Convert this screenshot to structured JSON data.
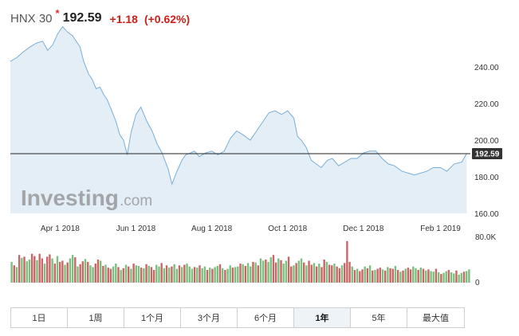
{
  "header": {
    "index_name": "HNX 30",
    "realtime_mark": "*",
    "last_price": "192.59",
    "change": "+1.18",
    "change_pct": "(+0.62%)",
    "change_color": "#c8221b"
  },
  "watermark": {
    "brand": "Investing",
    "suffix": ".com"
  },
  "colors": {
    "line": "#7aaed6",
    "area": "#e4eef7",
    "vol_up": "#7bbf7f",
    "vol_down": "#c96565",
    "last_line": "#222222",
    "label_bg": "#333333"
  },
  "chart_data": {
    "type": "area",
    "y_ticks": [
      "240.00",
      "220.00",
      "200.00",
      "180.00",
      "160.00"
    ],
    "ylim": [
      160,
      260
    ],
    "x_ticks": [
      {
        "label": "Apr 1 2018",
        "x": "2018-04-01"
      },
      {
        "label": "Jun 1 2018",
        "x": "2018-06-01"
      },
      {
        "label": "Aug 1 2018",
        "x": "2018-08-01"
      },
      {
        "label": "Oct 1 2018",
        "x": "2018-10-01"
      },
      {
        "label": "Dec 1 2018",
        "x": "2018-12-01"
      },
      {
        "label": "Feb 1 2019",
        "x": "2019-02-01"
      }
    ],
    "x_range": [
      "2018-02-20",
      "2019-02-25"
    ],
    "series": [
      {
        "x": [
          "2018-02-20",
          "2018-02-25",
          "2018-03-02",
          "2018-03-08",
          "2018-03-13",
          "2018-03-18",
          "2018-03-22",
          "2018-03-26",
          "2018-03-30",
          "2018-04-03",
          "2018-04-07",
          "2018-04-11",
          "2018-04-15",
          "2018-04-17",
          "2018-04-20",
          "2018-04-24",
          "2018-04-27",
          "2018-04-30",
          "2018-05-03",
          "2018-05-06",
          "2018-05-09",
          "2018-05-12",
          "2018-05-16",
          "2018-05-19",
          "2018-05-22",
          "2018-05-25",
          "2018-05-28",
          "2018-06-01",
          "2018-06-05",
          "2018-06-10",
          "2018-06-14",
          "2018-06-18",
          "2018-06-22",
          "2018-06-27",
          "2018-06-30",
          "2018-07-04",
          "2018-07-08",
          "2018-07-11",
          "2018-07-15",
          "2018-07-18",
          "2018-07-22",
          "2018-07-27",
          "2018-08-01",
          "2018-08-06",
          "2018-08-11",
          "2018-08-16",
          "2018-08-21",
          "2018-08-26",
          "2018-09-01",
          "2018-09-06",
          "2018-09-11",
          "2018-09-16",
          "2018-09-21",
          "2018-09-26",
          "2018-10-01",
          "2018-10-06",
          "2018-10-09",
          "2018-10-12",
          "2018-10-16",
          "2018-10-20",
          "2018-10-24",
          "2018-10-28",
          "2018-11-02",
          "2018-11-06",
          "2018-11-11",
          "2018-11-16",
          "2018-11-21",
          "2018-11-26",
          "2018-12-01",
          "2018-12-06",
          "2018-12-11",
          "2018-12-16",
          "2018-12-21",
          "2018-12-26",
          "2019-01-01",
          "2019-01-06",
          "2019-01-11",
          "2019-01-16",
          "2019-01-21",
          "2019-01-26",
          "2019-02-01",
          "2019-02-06",
          "2019-02-12",
          "2019-02-18",
          "2019-02-22"
        ],
        "y": [
          243,
          245,
          248,
          251,
          253,
          254,
          249,
          252,
          258,
          262,
          259,
          257,
          253,
          251,
          243,
          236,
          233,
          228,
          229,
          225,
          222,
          217,
          210,
          203,
          200,
          192,
          204,
          214,
          218,
          210,
          205,
          198,
          193,
          184,
          176,
          183,
          189,
          192,
          193,
          194,
          191,
          193,
          194,
          192,
          194,
          201,
          205,
          203,
          200,
          205,
          210,
          215,
          216,
          214,
          216,
          212,
          202,
          200,
          196,
          189,
          187,
          185,
          189,
          190,
          186,
          188,
          190,
          190,
          193,
          194,
          194,
          190,
          187,
          186,
          183,
          182,
          181,
          182,
          183,
          185,
          185,
          183,
          187,
          188,
          192.59
        ]
      }
    ],
    "last_value": "192.59",
    "volume": {
      "y_ticks": [
        "80.0K",
        "0"
      ],
      "ylim": [
        0,
        80000
      ],
      "values": [
        36000,
        30000,
        27000,
        48000,
        43000,
        45000,
        37000,
        40000,
        50000,
        46000,
        39000,
        50000,
        42000,
        33000,
        45000,
        49000,
        42000,
        33000,
        46000,
        36000,
        38000,
        31000,
        35000,
        42000,
        48000,
        44000,
        28000,
        32000,
        37000,
        41000,
        36000,
        30000,
        27000,
        33000,
        40000,
        38000,
        29000,
        31000,
        26000,
        24000,
        28000,
        33000,
        27000,
        22000,
        25000,
        31000,
        28000,
        24000,
        33000,
        30000,
        29000,
        26000,
        25000,
        32000,
        29000,
        27000,
        22000,
        31000,
        28000,
        34000,
        25000,
        30000,
        26000,
        28000,
        32000,
        24000,
        30000,
        27000,
        31000,
        33000,
        28000,
        24000,
        27000,
        26000,
        30000,
        25000,
        28000,
        22000,
        26000,
        24000,
        27000,
        29000,
        32000,
        25000,
        22000,
        24000,
        30000,
        26000,
        27000,
        28000,
        33000,
        32000,
        29000,
        34000,
        28000,
        36000,
        35000,
        30000,
        42000,
        38000,
        40000,
        36000,
        44000,
        48000,
        35000,
        42000,
        39000,
        33000,
        38000,
        45000,
        28000,
        30000,
        34000,
        38000,
        42000,
        35000,
        30000,
        38000,
        31000,
        34000,
        28000,
        33000,
        27000,
        40000,
        36000,
        31000,
        30000,
        33000,
        28000,
        25000,
        30000,
        34000,
        72000,
        36000,
        28000,
        22000,
        24000,
        20000,
        23000,
        28000,
        25000,
        30000,
        21000,
        22000,
        24000,
        26000,
        23000,
        21000,
        27000,
        25000,
        24000,
        29000,
        22000,
        19000,
        21000,
        24000,
        26000,
        23000,
        28000,
        25000,
        22000,
        26000,
        24000,
        21000,
        23000,
        20000,
        19000,
        24000,
        18000,
        15000,
        17000,
        20000,
        22000,
        18000,
        16000,
        21000,
        14000,
        17000,
        19000,
        20000,
        23000
      ],
      "up": [
        1,
        0,
        1,
        0,
        1,
        0,
        1,
        1,
        0,
        0,
        1,
        0,
        0,
        1,
        0,
        0,
        1,
        0,
        1,
        0,
        0,
        1,
        0,
        1,
        1,
        0,
        1,
        0,
        0,
        1,
        0,
        1,
        1,
        0,
        0,
        1,
        0,
        1,
        0,
        0,
        1,
        1,
        0,
        1,
        0,
        1,
        0,
        1,
        0,
        1,
        1,
        0,
        1,
        0,
        1,
        0,
        0,
        1,
        1,
        0,
        1,
        0,
        1,
        0,
        1,
        1,
        0,
        1,
        0,
        1,
        1,
        1,
        0,
        1,
        0,
        1,
        1,
        0,
        1,
        0,
        1,
        1,
        0,
        1,
        0,
        1,
        1,
        0,
        1,
        1,
        0,
        1,
        0,
        1,
        1,
        0,
        1,
        0,
        1,
        1,
        0,
        1,
        1,
        0,
        0,
        1,
        0,
        1,
        1,
        0,
        0,
        1,
        0,
        1,
        1,
        0,
        1,
        0,
        0,
        1,
        0,
        1,
        0,
        0,
        1,
        0,
        0,
        1,
        0,
        0,
        1,
        0,
        0,
        0,
        1,
        0,
        1,
        0,
        0,
        1,
        0,
        1,
        0,
        1,
        0,
        0,
        1,
        0,
        1,
        0,
        0,
        1,
        0,
        1,
        0,
        1,
        0,
        0,
        1,
        1,
        0,
        1,
        0,
        1,
        0,
        1,
        1,
        0,
        1,
        0,
        1,
        1,
        0,
        1,
        1,
        0,
        1,
        1,
        0,
        1,
        1
      ]
    }
  },
  "range_buttons": [
    "1日",
    "1周",
    "1个月",
    "3个月",
    "6个月",
    "1年",
    "5年",
    "最大值"
  ],
  "active_range": "1年"
}
